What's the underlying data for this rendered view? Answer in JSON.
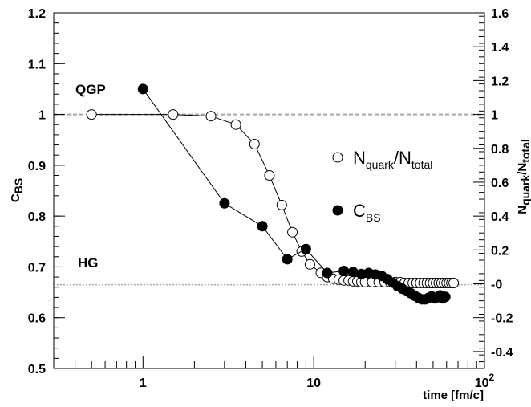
{
  "chart_data": {
    "type": "scatter",
    "x_scale": "log",
    "xlabel": "time [fm/c]",
    "xlim": [
      0.3,
      100
    ],
    "x_ticks": [
      {
        "value": 1,
        "label": "1"
      },
      {
        "value": 10,
        "label": "10"
      },
      {
        "value": 100,
        "label": "10",
        "exp": "2"
      }
    ],
    "y_left": {
      "label_main": "C",
      "label_sub": "BS",
      "lim": [
        0.5,
        1.2
      ],
      "ticks": [
        "0.5",
        "0.6",
        "0.7",
        "0.8",
        "0.9",
        "1",
        "1.1",
        "1.2"
      ]
    },
    "y_right": {
      "label_main": "N",
      "label_sub1": "quark",
      "label_mid": "/N",
      "label_sub2": "total",
      "lim": [
        -0.5,
        1.6
      ],
      "ticks": [
        "-0.4",
        "-0.2",
        "-0",
        "0.2",
        "0.4",
        "0.6",
        "0.8",
        "1",
        "1.2",
        "1.4",
        "1.6"
      ]
    },
    "reference_lines": [
      {
        "y": 1.0,
        "label": "QGP",
        "style": "dashed"
      },
      {
        "y": 0.665,
        "label": "HG",
        "style": "dotted"
      }
    ],
    "series": [
      {
        "name_main": "N",
        "name_sub1": "quark",
        "name_mid": "/N",
        "name_sub2": "total",
        "axis": "right",
        "marker": "open-circle",
        "points": [
          [
            0.5,
            1.0
          ],
          [
            1.5,
            1.0
          ],
          [
            2.5,
            0.99
          ],
          [
            3.5,
            0.94
          ],
          [
            4.5,
            0.825
          ],
          [
            5.5,
            0.64
          ],
          [
            6.5,
            0.465
          ],
          [
            7.5,
            0.305
          ],
          [
            8.5,
            0.19
          ],
          [
            9.5,
            0.115
          ],
          [
            11,
            0.065
          ],
          [
            12,
            0.04
          ],
          [
            13,
            0.03
          ],
          [
            14,
            0.025
          ],
          [
            15,
            0.02
          ],
          [
            16,
            0.02
          ],
          [
            17,
            0.015
          ],
          [
            18,
            0.015
          ],
          [
            19,
            0.01
          ],
          [
            20,
            0.01
          ],
          [
            22,
            0.01
          ],
          [
            24,
            0.01
          ],
          [
            26,
            0.01
          ],
          [
            28,
            0.01
          ],
          [
            30,
            0.01
          ],
          [
            32,
            0.01
          ],
          [
            34,
            0.005
          ],
          [
            36,
            0.005
          ],
          [
            38,
            0.005
          ],
          [
            40,
            0.005
          ],
          [
            42,
            0.005
          ],
          [
            44,
            0.005
          ],
          [
            46,
            0.005
          ],
          [
            48,
            0.005
          ],
          [
            50,
            0.005
          ],
          [
            52,
            0.005
          ],
          [
            54,
            0.005
          ],
          [
            56,
            0.005
          ],
          [
            58,
            0.005
          ],
          [
            60,
            0.005
          ],
          [
            62,
            0.005
          ],
          [
            64,
            0.005
          ],
          [
            66,
            0.005
          ]
        ]
      },
      {
        "name_main": "C",
        "name_sub": "BS",
        "axis": "left",
        "marker": "filled-circle",
        "points": [
          [
            1.0,
            1.05
          ],
          [
            3.0,
            0.825
          ],
          [
            5.0,
            0.78
          ],
          [
            7.0,
            0.715
          ],
          [
            9.0,
            0.735
          ],
          [
            12.0,
            0.688
          ],
          [
            15.0,
            0.692
          ],
          [
            17.0,
            0.69
          ],
          [
            19.0,
            0.686
          ],
          [
            21.0,
            0.688
          ],
          [
            23.0,
            0.685
          ],
          [
            25.0,
            0.682
          ],
          [
            27.0,
            0.676
          ],
          [
            29.0,
            0.669
          ],
          [
            31.0,
            0.662
          ],
          [
            33.0,
            0.657
          ],
          [
            35.0,
            0.652
          ],
          [
            37.0,
            0.648
          ],
          [
            39.0,
            0.643
          ],
          [
            41.0,
            0.639
          ],
          [
            43.0,
            0.636
          ],
          [
            45.0,
            0.636
          ],
          [
            47.0,
            0.639
          ],
          [
            49.0,
            0.642
          ],
          [
            51.0,
            0.638
          ],
          [
            53.0,
            0.64
          ],
          [
            55.0,
            0.644
          ],
          [
            57.0,
            0.638
          ],
          [
            59.0,
            0.641
          ]
        ]
      }
    ]
  }
}
